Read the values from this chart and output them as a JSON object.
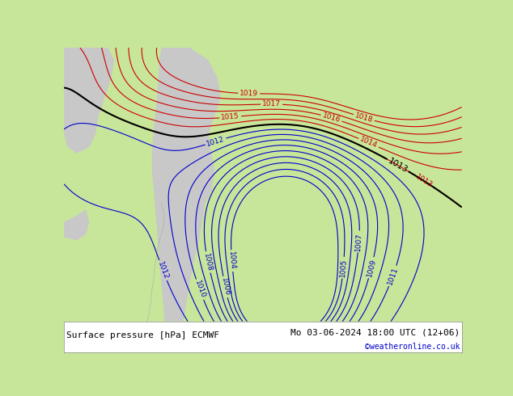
{
  "title_left": "Surface pressure [hPa] ECMWF",
  "title_right": "Mo 03-06-2024 18:00 UTC (12+06)",
  "copyright": "©weatheronline.co.uk",
  "bg_color": "#c8e69a",
  "land_color": "#c8e69a",
  "sea_color": "#c8c8c8",
  "blue_contour_color": "#0000cc",
  "red_contour_color": "#cc0000",
  "black_contour_color": "#000000",
  "text_color_left": "#000000",
  "text_color_right": "#000000",
  "text_color_copy": "#0000cc",
  "figsize": [
    6.34,
    4.9
  ],
  "dpi": 100,
  "font_size_labels": 6.5,
  "font_size_bottom": 8.0,
  "font_size_copy": 7.0
}
